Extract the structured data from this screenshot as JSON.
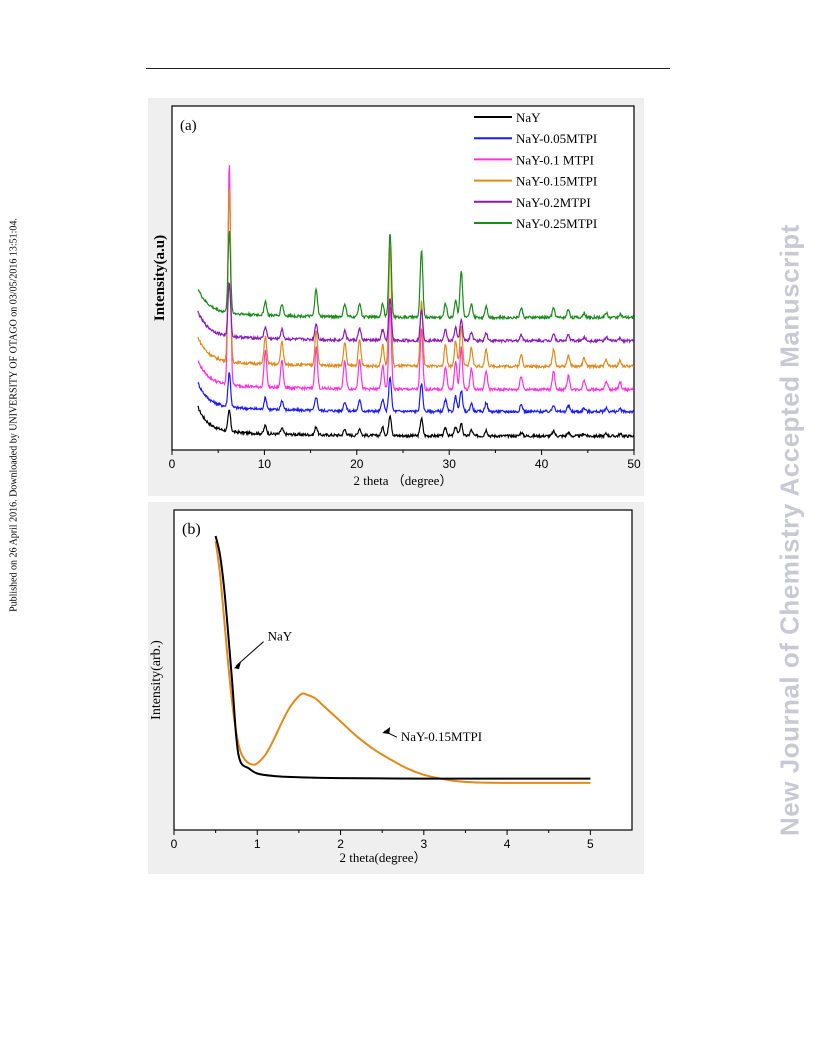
{
  "page": {
    "side_left_text": "Published on 26 April 2016. Downloaded by UNIVERSITY OF OTAGO on 03/05/2016 13:51:04.",
    "side_right_text": "New Journal of Chemistry Accepted Manuscript"
  },
  "chart_data": [
    {
      "type": "line",
      "panel_label": "(a)",
      "xlabel": "2 theta （degree）",
      "ylabel": "Intensity(a.u)",
      "xlim": [
        0,
        50
      ],
      "xticks": [
        0,
        10,
        20,
        30,
        40,
        50
      ],
      "y_ticks_shown": false,
      "legend_position": "top-right",
      "peaks_2theta": [
        6.2,
        10.1,
        11.9,
        15.6,
        18.7,
        20.3,
        22.8,
        23.6,
        27.0,
        29.6,
        30.7,
        31.3,
        32.4,
        34.0,
        37.8,
        41.3,
        42.9,
        44.6,
        47.0,
        48.5
      ],
      "series": [
        {
          "name": "NaY",
          "color": "#000000",
          "baseline": 0.0,
          "peak_heights": [
            0.9,
            0.35,
            0.25,
            0.35,
            0.25,
            0.3,
            0.35,
            0.9,
            0.75,
            0.35,
            0.4,
            0.55,
            0.25,
            0.25,
            0.15,
            0.2,
            0.15,
            0.1,
            0.1,
            0.08
          ]
        },
        {
          "name": "NaY-0.05MTPI",
          "color": "#1a1aff",
          "baseline": 1.05,
          "peak_heights": [
            1.5,
            0.5,
            0.4,
            0.6,
            0.4,
            0.45,
            0.5,
            1.5,
            1.2,
            0.5,
            0.65,
            0.9,
            0.35,
            0.4,
            0.3,
            0.3,
            0.25,
            0.15,
            0.15,
            0.1
          ]
        },
        {
          "name": "NaY-0.1 MTPI",
          "color": "#ff33dd",
          "baseline": 2.0,
          "peak_heights": [
            9.5,
            1.6,
            1.2,
            1.8,
            1.2,
            1.3,
            1.0,
            3.6,
            2.6,
            1.0,
            1.2,
            1.8,
            0.9,
            0.8,
            0.6,
            0.8,
            0.6,
            0.4,
            0.35,
            0.3
          ]
        },
        {
          "name": "NaY-0.15MTPI",
          "color": "#e08a1a",
          "baseline": 3.0,
          "peak_heights": [
            7.5,
            1.2,
            1.0,
            1.5,
            1.0,
            1.1,
            0.9,
            5.2,
            2.8,
            0.9,
            1.1,
            1.7,
            0.8,
            0.7,
            0.5,
            0.7,
            0.5,
            0.35,
            0.3,
            0.25
          ]
        },
        {
          "name": "NaY-0.2MTPI",
          "color": "#8a1ab8",
          "baseline": 4.1,
          "peak_heights": [
            2.3,
            0.5,
            0.4,
            0.7,
            0.4,
            0.5,
            0.45,
            1.8,
            1.3,
            0.45,
            0.55,
            0.9,
            0.35,
            0.35,
            0.25,
            0.3,
            0.25,
            0.15,
            0.15,
            0.1
          ]
        },
        {
          "name": "NaY-0.25MTPI",
          "color": "#1a8a1a",
          "baseline": 5.1,
          "peak_heights": [
            3.5,
            0.6,
            0.5,
            1.2,
            0.55,
            0.6,
            0.6,
            3.6,
            2.9,
            0.6,
            0.75,
            2.0,
            0.55,
            0.5,
            0.4,
            0.4,
            0.35,
            0.2,
            0.2,
            0.15
          ]
        }
      ]
    },
    {
      "type": "line",
      "panel_label": "(b)",
      "xlabel": "2 theta(degree）",
      "ylabel": "Intensity(arb.)",
      "xlim": [
        0,
        5
      ],
      "xticks": [
        0,
        1,
        2,
        3,
        4,
        5
      ],
      "y_ticks_shown": false,
      "series": [
        {
          "name": "NaY",
          "label_text": "NaY",
          "color": "#000000",
          "x": [
            0.5,
            0.55,
            0.6,
            0.65,
            0.7,
            0.75,
            0.8,
            0.9,
            1.0,
            1.2,
            1.5,
            2.0,
            3.0,
            4.0,
            5.0
          ],
          "y": [
            1.0,
            0.93,
            0.8,
            0.62,
            0.42,
            0.2,
            0.11,
            0.085,
            0.065,
            0.055,
            0.05,
            0.047,
            0.045,
            0.045,
            0.045
          ]
        },
        {
          "name": "NaY-0.15MTPI",
          "label_text": "NaY-0.15MTPI",
          "color": "#e08a1a",
          "x": [
            0.5,
            0.55,
            0.6,
            0.65,
            0.7,
            0.75,
            0.8,
            0.85,
            0.9,
            0.95,
            1.0,
            1.1,
            1.2,
            1.3,
            1.4,
            1.5,
            1.55,
            1.6,
            1.7,
            1.8,
            2.0,
            2.2,
            2.4,
            2.6,
            2.8,
            3.0,
            3.2,
            3.4,
            3.6,
            4.0,
            4.5,
            5.0
          ],
          "y": [
            0.98,
            0.86,
            0.68,
            0.5,
            0.34,
            0.22,
            0.15,
            0.12,
            0.105,
            0.1,
            0.105,
            0.14,
            0.2,
            0.27,
            0.33,
            0.37,
            0.38,
            0.375,
            0.36,
            0.33,
            0.27,
            0.21,
            0.16,
            0.12,
            0.085,
            0.06,
            0.045,
            0.035,
            0.03,
            0.028,
            0.028,
            0.028
          ]
        }
      ]
    }
  ]
}
